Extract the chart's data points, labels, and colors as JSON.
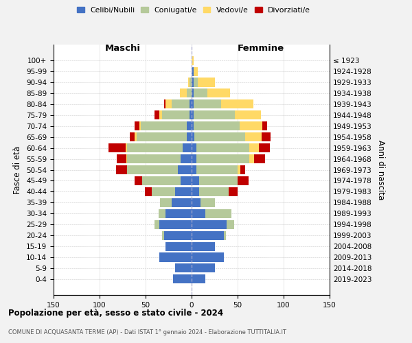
{
  "age_groups_bottom_to_top": [
    "0-4",
    "5-9",
    "10-14",
    "15-19",
    "20-24",
    "25-29",
    "30-34",
    "35-39",
    "40-44",
    "45-49",
    "50-54",
    "55-59",
    "60-64",
    "65-69",
    "70-74",
    "75-79",
    "80-84",
    "85-89",
    "90-94",
    "95-99",
    "100+"
  ],
  "birth_years_bottom_to_top": [
    "2019-2023",
    "2014-2018",
    "2009-2013",
    "2004-2008",
    "1999-2003",
    "1994-1998",
    "1989-1993",
    "1984-1988",
    "1979-1983",
    "1974-1978",
    "1969-1973",
    "1964-1968",
    "1959-1963",
    "1954-1958",
    "1949-1953",
    "1944-1948",
    "1939-1943",
    "1934-1938",
    "1929-1933",
    "1924-1928",
    "≤ 1923"
  ],
  "colors": {
    "celibi": "#4472c4",
    "coniugati": "#b5c99a",
    "vedovi": "#ffd966",
    "divorziati": "#c00000"
  },
  "maschi_celibi": [
    20,
    18,
    35,
    28,
    30,
    35,
    28,
    22,
    18,
    12,
    15,
    12,
    10,
    5,
    5,
    2,
    2,
    0,
    0,
    0,
    0
  ],
  "maschi_coniugati": [
    0,
    0,
    0,
    0,
    2,
    5,
    8,
    12,
    25,
    42,
    55,
    58,
    60,
    55,
    50,
    30,
    20,
    5,
    2,
    0,
    0
  ],
  "maschi_vedovi": [
    0,
    0,
    0,
    0,
    0,
    0,
    0,
    0,
    0,
    0,
    0,
    1,
    2,
    2,
    2,
    3,
    6,
    8,
    2,
    0,
    0
  ],
  "maschi_divorziati": [
    0,
    0,
    0,
    0,
    0,
    0,
    0,
    0,
    8,
    8,
    12,
    10,
    18,
    5,
    5,
    5,
    2,
    0,
    0,
    0,
    0
  ],
  "femmine_celibi": [
    15,
    25,
    35,
    25,
    35,
    38,
    15,
    10,
    8,
    8,
    5,
    5,
    5,
    3,
    2,
    2,
    2,
    2,
    2,
    2,
    0
  ],
  "femmine_coniugati": [
    0,
    0,
    0,
    0,
    2,
    8,
    28,
    15,
    32,
    42,
    45,
    58,
    58,
    55,
    50,
    45,
    30,
    15,
    5,
    0,
    0
  ],
  "femmine_vedovi": [
    0,
    0,
    0,
    0,
    0,
    0,
    0,
    0,
    0,
    0,
    3,
    5,
    10,
    18,
    25,
    28,
    35,
    25,
    18,
    5,
    2
  ],
  "femmine_divorziati": [
    0,
    0,
    0,
    0,
    0,
    0,
    0,
    0,
    10,
    12,
    5,
    12,
    12,
    10,
    5,
    0,
    0,
    0,
    0,
    0,
    0
  ],
  "xlim": 150,
  "title": "Popolazione per età, sesso e stato civile - 2024",
  "subtitle": "COMUNE DI ACQUASANTA TERME (AP) - Dati ISTAT 1° gennaio 2024 - Elaborazione TUTTITALIA.IT",
  "xlabel_maschi": "Maschi",
  "xlabel_femmine": "Femmine",
  "ylabel_left": "Fasce di età",
  "ylabel_right": "Anni di nascita",
  "legend_labels": [
    "Celibi/Nubili",
    "Coniugati/e",
    "Vedovi/e",
    "Divorziati/e"
  ],
  "bg_color": "#f2f2f2",
  "plot_bg": "#ffffff"
}
